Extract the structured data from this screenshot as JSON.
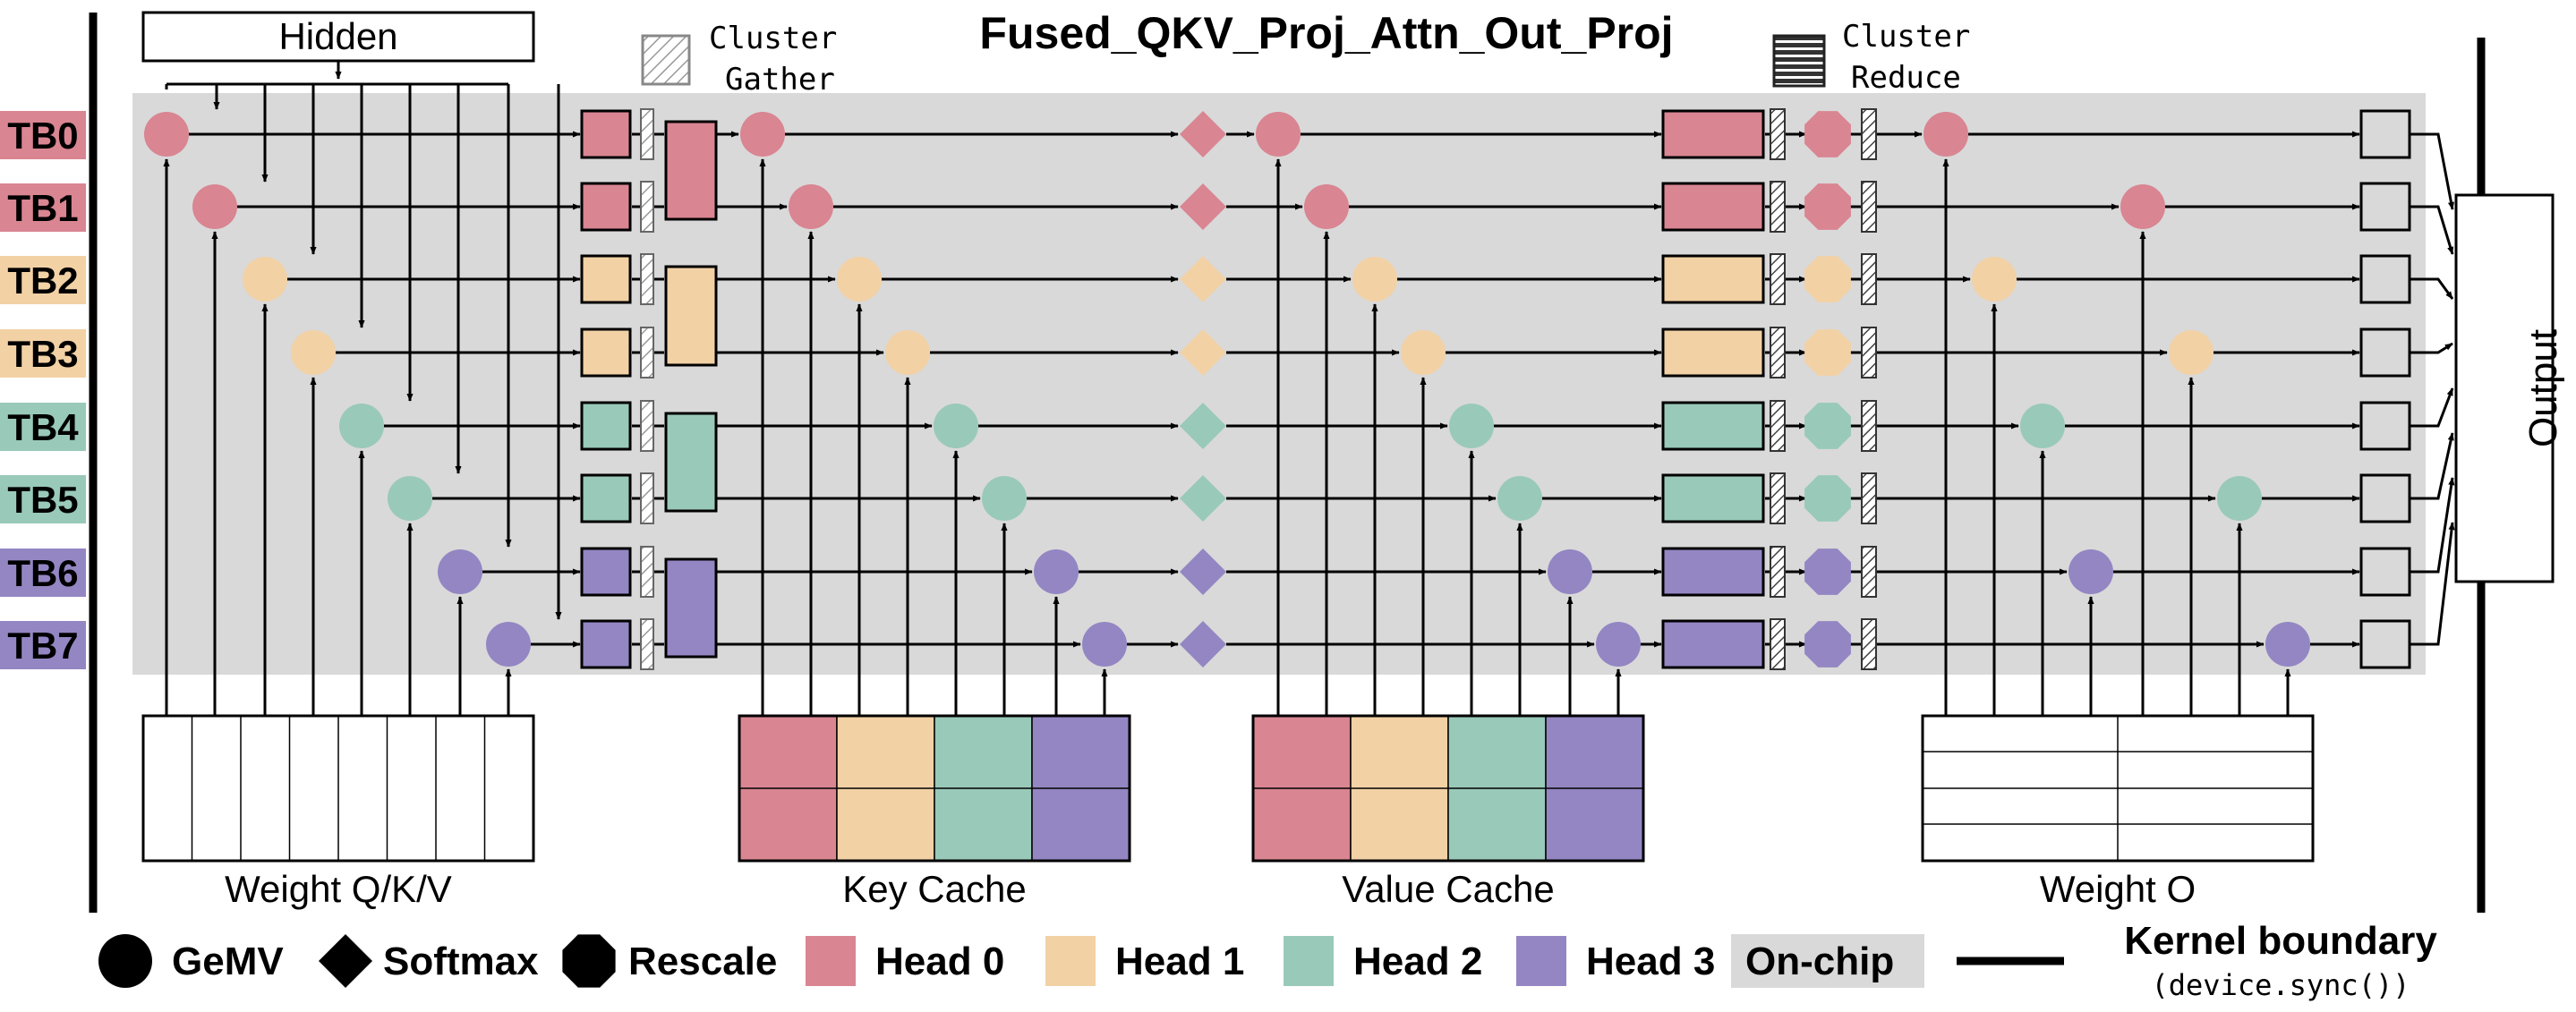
{
  "diagram": {
    "title": "Fused_QKV_Proj_Attn_Out_Proj",
    "hidden_label": "Hidden",
    "cluster_gather_label": [
      "Cluster",
      "Gather"
    ],
    "cluster_reduce_label": [
      "Cluster",
      "Reduce"
    ],
    "output_label": "Output",
    "thread_blocks": [
      {
        "label": "TB0",
        "head": 0
      },
      {
        "label": "TB1",
        "head": 0
      },
      {
        "label": "TB2",
        "head": 1
      },
      {
        "label": "TB3",
        "head": 1
      },
      {
        "label": "TB4",
        "head": 2
      },
      {
        "label": "TB5",
        "head": 2
      },
      {
        "label": "TB6",
        "head": 3
      },
      {
        "label": "TB7",
        "head": 3
      }
    ],
    "memory_blocks": {
      "weight_qkv": "Weight Q/K/V",
      "key_cache": "Key Cache",
      "value_cache": "Value Cache",
      "weight_o": "Weight O"
    },
    "head_colors": [
      "#d98592",
      "#f2d1a5",
      "#99c9b9",
      "#9486c3"
    ],
    "onchip_color": "#d9d9d9",
    "legend": {
      "gemv": "GeMV",
      "softmax": "Softmax",
      "rescale": "Rescale",
      "heads": [
        "Head 0",
        "Head 1",
        "Head 2",
        "Head 3"
      ],
      "onchip": "On-chip",
      "kernel_boundary": "Kernel boundary",
      "kernel_boundary_sub": "(device.sync())"
    }
  }
}
